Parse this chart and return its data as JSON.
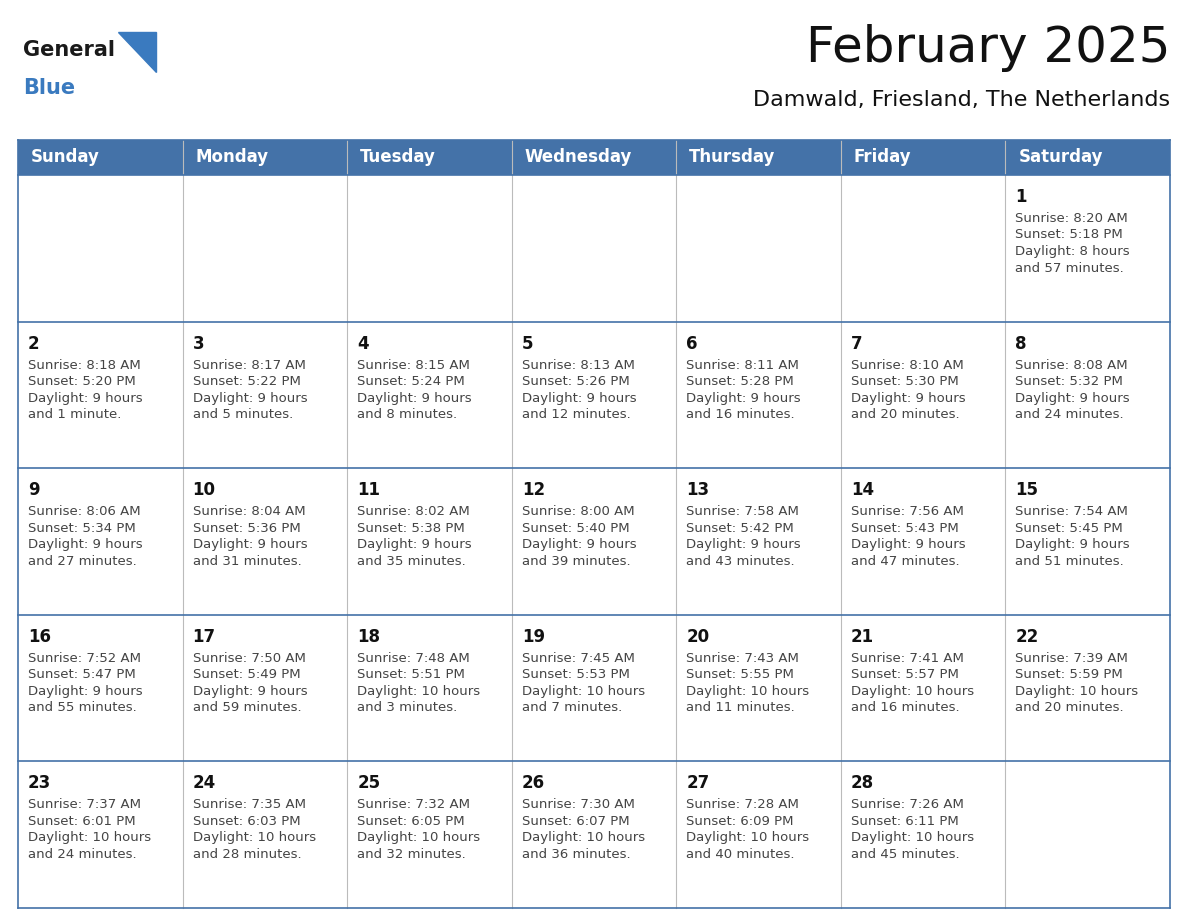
{
  "title": "February 2025",
  "subtitle": "Damwald, Friesland, The Netherlands",
  "header_color": "#4472a8",
  "header_text_color": "#ffffff",
  "row_border_color": "#4472a8",
  "day_names": [
    "Sunday",
    "Monday",
    "Tuesday",
    "Wednesday",
    "Thursday",
    "Friday",
    "Saturday"
  ],
  "background_color": "#ffffff",
  "cell_bg": "#ffffff",
  "days": [
    {
      "day": 1,
      "col": 6,
      "row": 0,
      "sunrise": "8:20 AM",
      "sunset": "5:18 PM",
      "daylight_line1": "Daylight: 8 hours",
      "daylight_line2": "and 57 minutes."
    },
    {
      "day": 2,
      "col": 0,
      "row": 1,
      "sunrise": "8:18 AM",
      "sunset": "5:20 PM",
      "daylight_line1": "Daylight: 9 hours",
      "daylight_line2": "and 1 minute."
    },
    {
      "day": 3,
      "col": 1,
      "row": 1,
      "sunrise": "8:17 AM",
      "sunset": "5:22 PM",
      "daylight_line1": "Daylight: 9 hours",
      "daylight_line2": "and 5 minutes."
    },
    {
      "day": 4,
      "col": 2,
      "row": 1,
      "sunrise": "8:15 AM",
      "sunset": "5:24 PM",
      "daylight_line1": "Daylight: 9 hours",
      "daylight_line2": "and 8 minutes."
    },
    {
      "day": 5,
      "col": 3,
      "row": 1,
      "sunrise": "8:13 AM",
      "sunset": "5:26 PM",
      "daylight_line1": "Daylight: 9 hours",
      "daylight_line2": "and 12 minutes."
    },
    {
      "day": 6,
      "col": 4,
      "row": 1,
      "sunrise": "8:11 AM",
      "sunset": "5:28 PM",
      "daylight_line1": "Daylight: 9 hours",
      "daylight_line2": "and 16 minutes."
    },
    {
      "day": 7,
      "col": 5,
      "row": 1,
      "sunrise": "8:10 AM",
      "sunset": "5:30 PM",
      "daylight_line1": "Daylight: 9 hours",
      "daylight_line2": "and 20 minutes."
    },
    {
      "day": 8,
      "col": 6,
      "row": 1,
      "sunrise": "8:08 AM",
      "sunset": "5:32 PM",
      "daylight_line1": "Daylight: 9 hours",
      "daylight_line2": "and 24 minutes."
    },
    {
      "day": 9,
      "col": 0,
      "row": 2,
      "sunrise": "8:06 AM",
      "sunset": "5:34 PM",
      "daylight_line1": "Daylight: 9 hours",
      "daylight_line2": "and 27 minutes."
    },
    {
      "day": 10,
      "col": 1,
      "row": 2,
      "sunrise": "8:04 AM",
      "sunset": "5:36 PM",
      "daylight_line1": "Daylight: 9 hours",
      "daylight_line2": "and 31 minutes."
    },
    {
      "day": 11,
      "col": 2,
      "row": 2,
      "sunrise": "8:02 AM",
      "sunset": "5:38 PM",
      "daylight_line1": "Daylight: 9 hours",
      "daylight_line2": "and 35 minutes."
    },
    {
      "day": 12,
      "col": 3,
      "row": 2,
      "sunrise": "8:00 AM",
      "sunset": "5:40 PM",
      "daylight_line1": "Daylight: 9 hours",
      "daylight_line2": "and 39 minutes."
    },
    {
      "day": 13,
      "col": 4,
      "row": 2,
      "sunrise": "7:58 AM",
      "sunset": "5:42 PM",
      "daylight_line1": "Daylight: 9 hours",
      "daylight_line2": "and 43 minutes."
    },
    {
      "day": 14,
      "col": 5,
      "row": 2,
      "sunrise": "7:56 AM",
      "sunset": "5:43 PM",
      "daylight_line1": "Daylight: 9 hours",
      "daylight_line2": "and 47 minutes."
    },
    {
      "day": 15,
      "col": 6,
      "row": 2,
      "sunrise": "7:54 AM",
      "sunset": "5:45 PM",
      "daylight_line1": "Daylight: 9 hours",
      "daylight_line2": "and 51 minutes."
    },
    {
      "day": 16,
      "col": 0,
      "row": 3,
      "sunrise": "7:52 AM",
      "sunset": "5:47 PM",
      "daylight_line1": "Daylight: 9 hours",
      "daylight_line2": "and 55 minutes."
    },
    {
      "day": 17,
      "col": 1,
      "row": 3,
      "sunrise": "7:50 AM",
      "sunset": "5:49 PM",
      "daylight_line1": "Daylight: 9 hours",
      "daylight_line2": "and 59 minutes."
    },
    {
      "day": 18,
      "col": 2,
      "row": 3,
      "sunrise": "7:48 AM",
      "sunset": "5:51 PM",
      "daylight_line1": "Daylight: 10 hours",
      "daylight_line2": "and 3 minutes."
    },
    {
      "day": 19,
      "col": 3,
      "row": 3,
      "sunrise": "7:45 AM",
      "sunset": "5:53 PM",
      "daylight_line1": "Daylight: 10 hours",
      "daylight_line2": "and 7 minutes."
    },
    {
      "day": 20,
      "col": 4,
      "row": 3,
      "sunrise": "7:43 AM",
      "sunset": "5:55 PM",
      "daylight_line1": "Daylight: 10 hours",
      "daylight_line2": "and 11 minutes."
    },
    {
      "day": 21,
      "col": 5,
      "row": 3,
      "sunrise": "7:41 AM",
      "sunset": "5:57 PM",
      "daylight_line1": "Daylight: 10 hours",
      "daylight_line2": "and 16 minutes."
    },
    {
      "day": 22,
      "col": 6,
      "row": 3,
      "sunrise": "7:39 AM",
      "sunset": "5:59 PM",
      "daylight_line1": "Daylight: 10 hours",
      "daylight_line2": "and 20 minutes."
    },
    {
      "day": 23,
      "col": 0,
      "row": 4,
      "sunrise": "7:37 AM",
      "sunset": "6:01 PM",
      "daylight_line1": "Daylight: 10 hours",
      "daylight_line2": "and 24 minutes."
    },
    {
      "day": 24,
      "col": 1,
      "row": 4,
      "sunrise": "7:35 AM",
      "sunset": "6:03 PM",
      "daylight_line1": "Daylight: 10 hours",
      "daylight_line2": "and 28 minutes."
    },
    {
      "day": 25,
      "col": 2,
      "row": 4,
      "sunrise": "7:32 AM",
      "sunset": "6:05 PM",
      "daylight_line1": "Daylight: 10 hours",
      "daylight_line2": "and 32 minutes."
    },
    {
      "day": 26,
      "col": 3,
      "row": 4,
      "sunrise": "7:30 AM",
      "sunset": "6:07 PM",
      "daylight_line1": "Daylight: 10 hours",
      "daylight_line2": "and 36 minutes."
    },
    {
      "day": 27,
      "col": 4,
      "row": 4,
      "sunrise": "7:28 AM",
      "sunset": "6:09 PM",
      "daylight_line1": "Daylight: 10 hours",
      "daylight_line2": "and 40 minutes."
    },
    {
      "day": 28,
      "col": 5,
      "row": 4,
      "sunrise": "7:26 AM",
      "sunset": "6:11 PM",
      "daylight_line1": "Daylight: 10 hours",
      "daylight_line2": "and 45 minutes."
    }
  ],
  "logo_general_color": "#1a1a1a",
  "logo_blue_color": "#3a7abf",
  "num_rows": 5,
  "text_color": "#444444",
  "day_num_color": "#111111",
  "title_fontsize": 36,
  "subtitle_fontsize": 16,
  "header_fontsize": 12,
  "day_num_fontsize": 12,
  "cell_text_fontsize": 9.5
}
